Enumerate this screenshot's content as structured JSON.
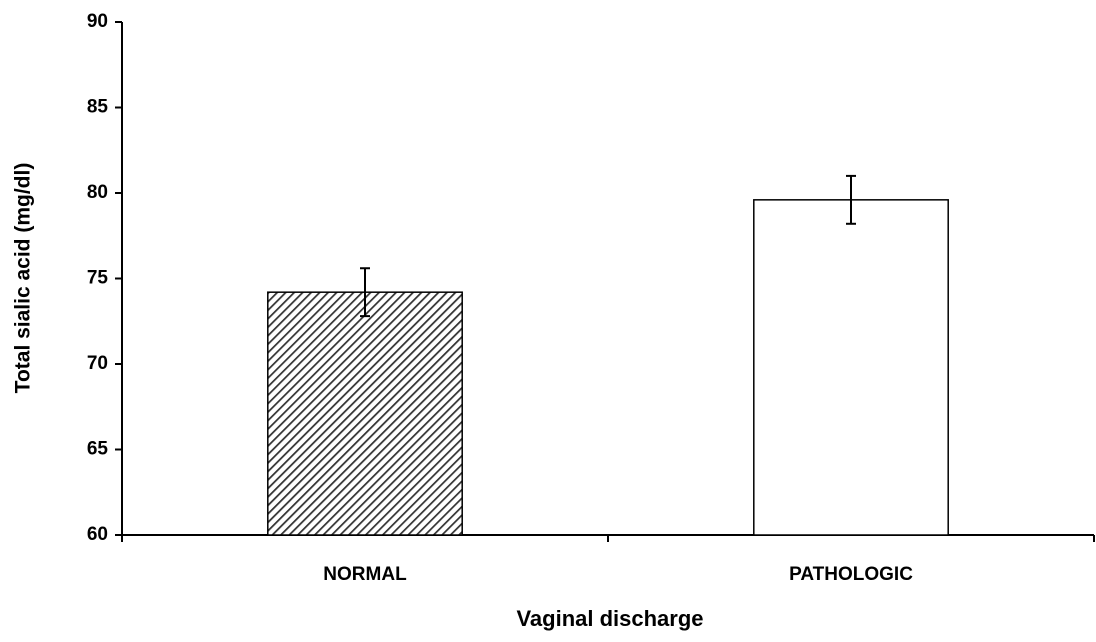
{
  "chart_data": {
    "type": "bar",
    "xlabel": "Vaginal discharge",
    "ylabel": "Total sialic acid (mg/dl)",
    "categories": [
      "NORMAL",
      "PATHOLOGIC"
    ],
    "values": [
      74.2,
      79.6
    ],
    "errors": [
      1.4,
      1.4
    ],
    "colors": [
      "#333333",
      "#ffffff"
    ],
    "hatch": [
      true,
      false
    ],
    "ylim": [
      60,
      90
    ],
    "yticks": [
      60,
      65,
      70,
      75,
      80,
      85,
      90
    ],
    "grid": false
  }
}
